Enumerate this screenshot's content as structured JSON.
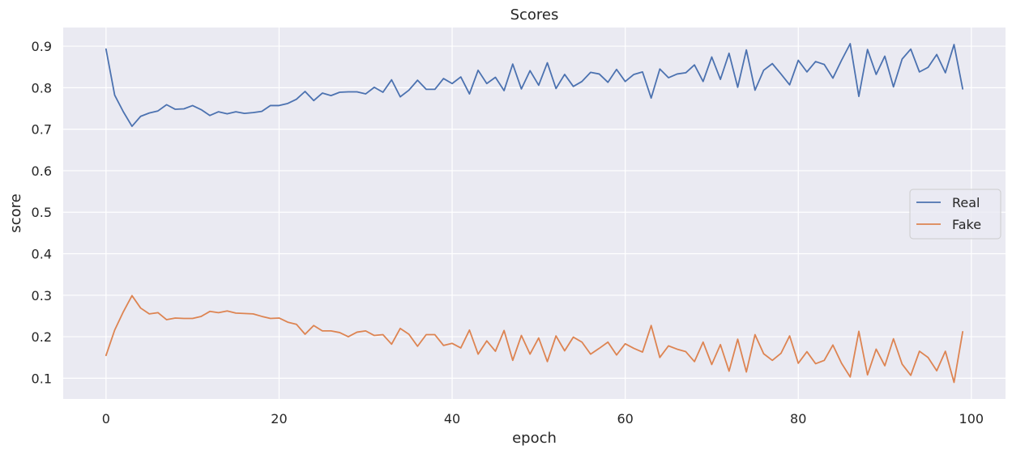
{
  "chart_data": {
    "type": "line",
    "title": "Scores",
    "xlabel": "epoch",
    "ylabel": "score",
    "xlim": [
      -4.95,
      103.95
    ],
    "ylim": [
      0.05,
      0.945
    ],
    "xticks": [
      0,
      20,
      40,
      60,
      80,
      100
    ],
    "yticks": [
      0.1,
      0.2,
      0.3,
      0.4,
      0.5,
      0.6,
      0.7,
      0.8,
      0.9
    ],
    "xtick_labels": [
      "0",
      "20",
      "40",
      "60",
      "80",
      "100"
    ],
    "ytick_labels": [
      "0.1",
      "0.2",
      "0.3",
      "0.4",
      "0.5",
      "0.6",
      "0.7",
      "0.8",
      "0.9"
    ],
    "grid": true,
    "legend_position": "center-right",
    "background_color": "#eaeaf2",
    "grid_color": "#ffffff",
    "series": [
      {
        "name": "Real",
        "color": "#4c72b0",
        "values": [
          0.893,
          0.782,
          0.742,
          0.707,
          0.731,
          0.739,
          0.744,
          0.759,
          0.748,
          0.749,
          0.757,
          0.747,
          0.733,
          0.742,
          0.737,
          0.742,
          0.738,
          0.74,
          0.743,
          0.757,
          0.757,
          0.762,
          0.772,
          0.791,
          0.769,
          0.787,
          0.781,
          0.789,
          0.79,
          0.79,
          0.785,
          0.801,
          0.789,
          0.819,
          0.778,
          0.794,
          0.818,
          0.796,
          0.796,
          0.822,
          0.81,
          0.826,
          0.785,
          0.842,
          0.81,
          0.825,
          0.793,
          0.857,
          0.797,
          0.841,
          0.806,
          0.86,
          0.798,
          0.832,
          0.803,
          0.815,
          0.837,
          0.833,
          0.813,
          0.844,
          0.815,
          0.832,
          0.838,
          0.775,
          0.845,
          0.824,
          0.833,
          0.836,
          0.855,
          0.815,
          0.874,
          0.82,
          0.883,
          0.801,
          0.891,
          0.794,
          0.842,
          0.858,
          0.833,
          0.807,
          0.866,
          0.838,
          0.863,
          0.856,
          0.823,
          0.866,
          0.906,
          0.779,
          0.892,
          0.832,
          0.876,
          0.802,
          0.869,
          0.893,
          0.838,
          0.849,
          0.88,
          0.836,
          0.904,
          0.797
        ]
      },
      {
        "name": "Fake",
        "color": "#dd8452",
        "values": [
          0.155,
          0.216,
          0.26,
          0.299,
          0.269,
          0.255,
          0.258,
          0.241,
          0.245,
          0.244,
          0.244,
          0.249,
          0.261,
          0.258,
          0.262,
          0.257,
          0.256,
          0.255,
          0.249,
          0.244,
          0.245,
          0.235,
          0.23,
          0.206,
          0.227,
          0.214,
          0.214,
          0.21,
          0.2,
          0.211,
          0.214,
          0.203,
          0.205,
          0.182,
          0.22,
          0.206,
          0.177,
          0.205,
          0.205,
          0.179,
          0.184,
          0.173,
          0.216,
          0.158,
          0.19,
          0.165,
          0.215,
          0.143,
          0.203,
          0.158,
          0.197,
          0.14,
          0.202,
          0.166,
          0.199,
          0.187,
          0.158,
          0.172,
          0.187,
          0.156,
          0.183,
          0.172,
          0.163,
          0.227,
          0.15,
          0.178,
          0.17,
          0.164,
          0.14,
          0.187,
          0.133,
          0.181,
          0.117,
          0.194,
          0.115,
          0.205,
          0.159,
          0.143,
          0.16,
          0.202,
          0.136,
          0.164,
          0.135,
          0.143,
          0.18,
          0.136,
          0.103,
          0.213,
          0.108,
          0.17,
          0.13,
          0.195,
          0.134,
          0.107,
          0.165,
          0.15,
          0.118,
          0.165,
          0.09,
          0.212
        ]
      }
    ]
  }
}
